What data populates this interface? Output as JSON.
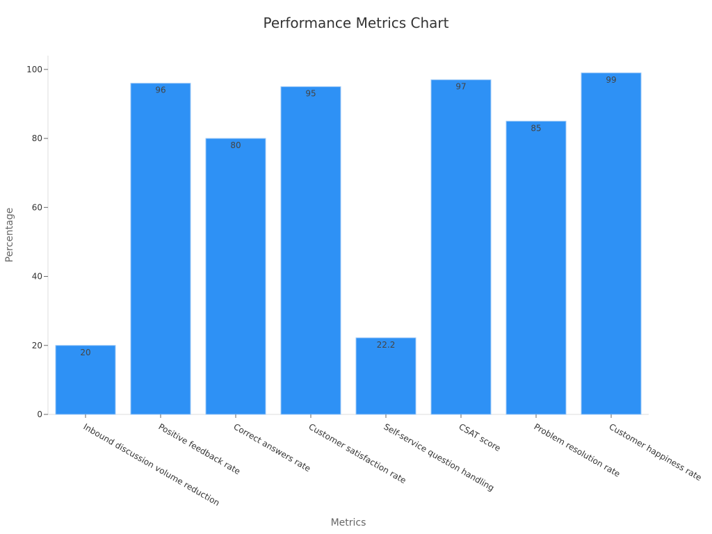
{
  "chart_data": {
    "type": "bar",
    "title": "Performance Metrics Chart",
    "xlabel": "Metrics",
    "ylabel": "Percentage",
    "categories": [
      "Inbound discussion volume reduction",
      "Positive feedback rate",
      "Correct answers rate",
      "Customer satisfaction rate",
      "Self-service question handling",
      "CSAT score",
      "Problem resolution rate",
      "Customer happiness rate"
    ],
    "values": [
      20,
      96,
      80,
      95,
      22.2,
      97,
      85,
      99
    ],
    "data_labels": [
      "20",
      "96",
      "80",
      "95",
      "22.2",
      "97",
      "85",
      "99"
    ],
    "ylim": [
      0,
      104
    ],
    "yticks": [
      0,
      20,
      40,
      60,
      80,
      100
    ],
    "grid": false,
    "legend": "none",
    "colors": {
      "bar": "#2e91f5",
      "bar_edge": "#9fc9f7"
    }
  }
}
